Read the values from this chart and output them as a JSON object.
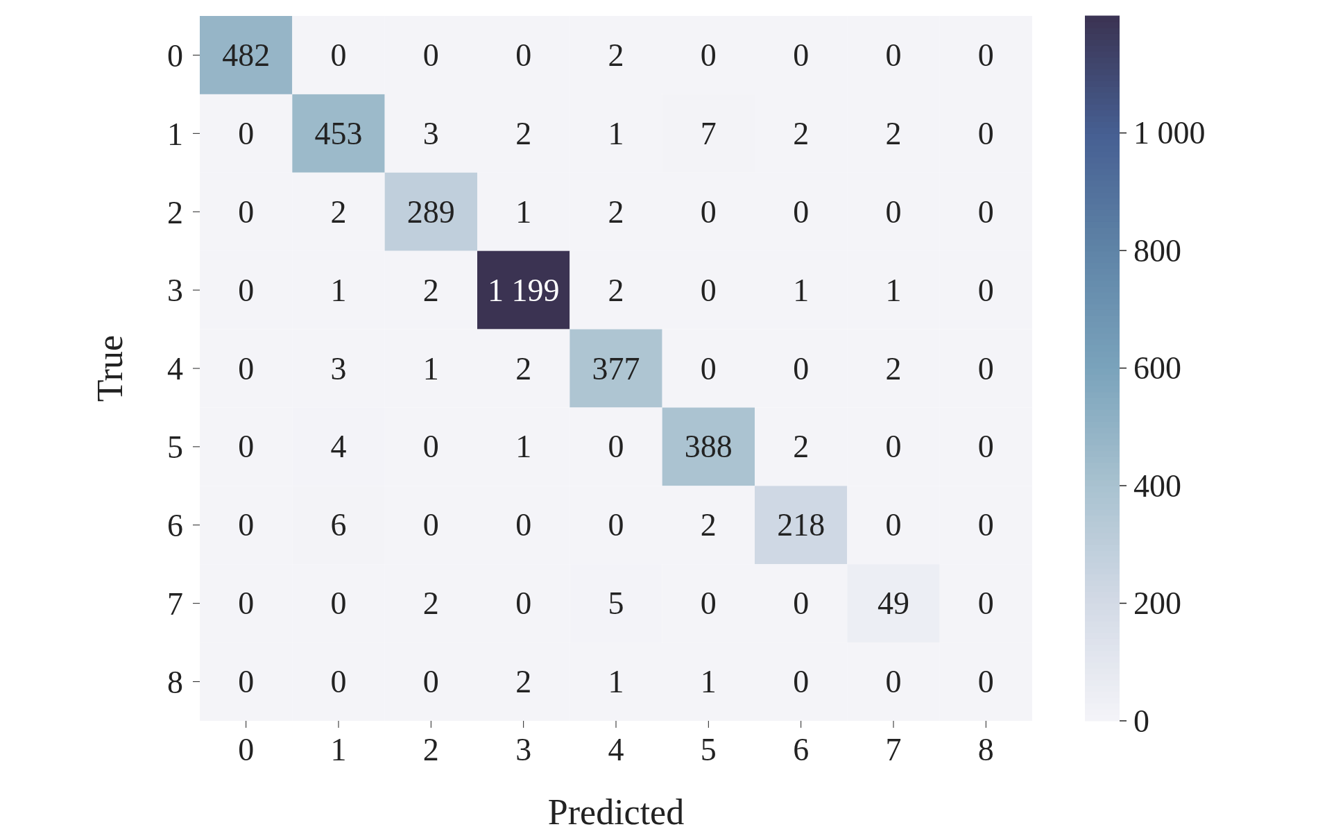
{
  "chart_data": {
    "type": "heatmap",
    "xlabel": "Predicted",
    "ylabel": "True",
    "categories": [
      "0",
      "1",
      "2",
      "3",
      "4",
      "5",
      "6",
      "7",
      "8"
    ],
    "y_categories": [
      "0",
      "1",
      "2",
      "3",
      "4",
      "5",
      "6",
      "7",
      "8"
    ],
    "cells": [
      [
        482,
        0,
        0,
        0,
        2,
        0,
        0,
        0,
        0
      ],
      [
        0,
        453,
        3,
        2,
        1,
        7,
        2,
        2,
        0
      ],
      [
        0,
        2,
        289,
        1,
        2,
        0,
        0,
        0,
        0
      ],
      [
        0,
        1,
        2,
        1199,
        2,
        0,
        1,
        1,
        0
      ],
      [
        0,
        3,
        1,
        2,
        377,
        0,
        0,
        2,
        0
      ],
      [
        0,
        4,
        0,
        1,
        0,
        388,
        2,
        0,
        0
      ],
      [
        0,
        6,
        0,
        0,
        0,
        2,
        218,
        0,
        0
      ],
      [
        0,
        0,
        2,
        0,
        5,
        0,
        0,
        49,
        0
      ],
      [
        0,
        0,
        0,
        2,
        1,
        1,
        0,
        0,
        0
      ]
    ],
    "cell_labels": [
      [
        "482",
        "0",
        "0",
        "0",
        "2",
        "0",
        "0",
        "0",
        "0"
      ],
      [
        "0",
        "453",
        "3",
        "2",
        "1",
        "7",
        "2",
        "2",
        "0"
      ],
      [
        "0",
        "2",
        "289",
        "1",
        "2",
        "0",
        "0",
        "0",
        "0"
      ],
      [
        "0",
        "1",
        "2",
        "1 199",
        "2",
        "0",
        "1",
        "1",
        "0"
      ],
      [
        "0",
        "3",
        "1",
        "2",
        "377",
        "0",
        "0",
        "2",
        "0"
      ],
      [
        "0",
        "4",
        "0",
        "1",
        "0",
        "388",
        "2",
        "0",
        "0"
      ],
      [
        "0",
        "6",
        "0",
        "0",
        "0",
        "2",
        "218",
        "0",
        "0"
      ],
      [
        "0",
        "0",
        "2",
        "0",
        "5",
        "0",
        "0",
        "49",
        "0"
      ],
      [
        "0",
        "0",
        "0",
        "2",
        "1",
        "1",
        "0",
        "0",
        "0"
      ]
    ],
    "clim": [
      0,
      1199
    ],
    "cticks": [
      0,
      200,
      400,
      600,
      800,
      {
        "value": 1000,
        "label": "1 000"
      }
    ],
    "colors": [
      "#f4f4f8",
      "#d3dae6",
      "#a9c2d0",
      "#7aa3bb",
      "#5f84a7",
      "#465f92",
      "#3b3352"
    ]
  }
}
